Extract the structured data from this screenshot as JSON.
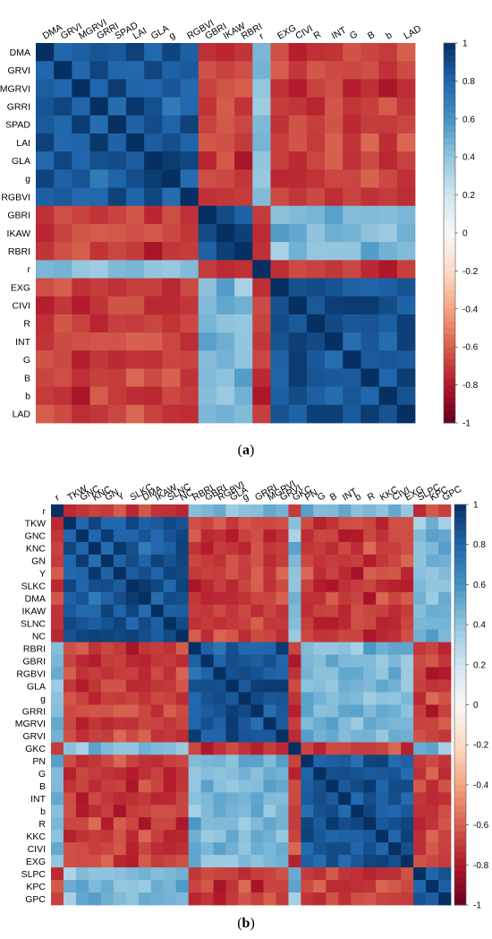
{
  "panels": [
    {
      "label_open": "(",
      "label_letter": "a",
      "label_close": ")",
      "chart_data": {
        "type": "heatmap",
        "variables": [
          "DMA",
          "GRVI",
          "MGRVI",
          "GRRI",
          "SPAD",
          "LAI",
          "GLA",
          "g",
          "RGBVI",
          "GBRI",
          "IKAW",
          "RBRI",
          "r",
          "EXG",
          "CIVI",
          "R",
          "INT",
          "G",
          "B",
          "b",
          "LAD"
        ],
        "groups": [
          [
            "DMA",
            "GRVI",
            "MGRVI",
            "GRRI",
            "SPAD",
            "LAI",
            "GLA",
            "g",
            "RGBVI"
          ],
          [
            "GBRI",
            "IKAW",
            "RBRI"
          ],
          [
            "r"
          ],
          [
            "EXG",
            "CIVI",
            "R",
            "INT",
            "G",
            "B",
            "b",
            "LAD"
          ]
        ],
        "colorbar": {
          "min": -1,
          "max": 1,
          "ticks": [
            1,
            0.8,
            0.6,
            0.4,
            0.2,
            0,
            -0.2,
            -0.4,
            -0.6,
            -0.8,
            -1
          ]
        },
        "colorscale": [
          "#67001f",
          "#b2182b",
          "#d6604d",
          "#f4a582",
          "#fddbc7",
          "#f7f7f7",
          "#d1e5f0",
          "#92c5de",
          "#4393c3",
          "#2166ac",
          "#053061"
        ]
      }
    },
    {
      "label_open": "(",
      "label_letter": "b",
      "label_close": ")",
      "chart_data": {
        "type": "heatmap",
        "variables": [
          "r",
          "TKW",
          "GNC",
          "KNC",
          "GN",
          "Y",
          "SLKC",
          "DMA",
          "IKAW",
          "SLNC",
          "NC",
          "RBRI",
          "GBRI",
          "RGBVI",
          "GLA",
          "g",
          "GRRI",
          "MGRVI",
          "GRVI",
          "GKC",
          "PN",
          "G",
          "B",
          "INT",
          "b",
          "R",
          "KKC",
          "CIVI",
          "EXG",
          "SLPC",
          "KPC",
          "GPC"
        ],
        "groups": [
          [
            "r"
          ],
          [
            "TKW",
            "GNC",
            "KNC",
            "GN",
            "Y",
            "SLKC",
            "DMA",
            "IKAW",
            "SLNC",
            "NC"
          ],
          [
            "RBRI",
            "GBRI",
            "RGBVI",
            "GLA",
            "g",
            "GRRI",
            "MGRVI",
            "GRVI"
          ],
          [
            "GKC"
          ],
          [
            "PN",
            "G",
            "B",
            "INT",
            "b",
            "R",
            "KKC",
            "CIVI",
            "EXG"
          ],
          [
            "SLPC",
            "KPC",
            "GPC"
          ]
        ],
        "colorbar": {
          "min": -1,
          "max": 1,
          "ticks": [
            1,
            0.8,
            0.6,
            0.4,
            0.2,
            0,
            -0.2,
            -0.4,
            -0.6,
            -0.8,
            -1
          ]
        },
        "colorscale": [
          "#67001f",
          "#b2182b",
          "#d6604d",
          "#f4a582",
          "#fddbc7",
          "#f7f7f7",
          "#d1e5f0",
          "#92c5de",
          "#4393c3",
          "#2166ac",
          "#053061"
        ]
      }
    }
  ]
}
